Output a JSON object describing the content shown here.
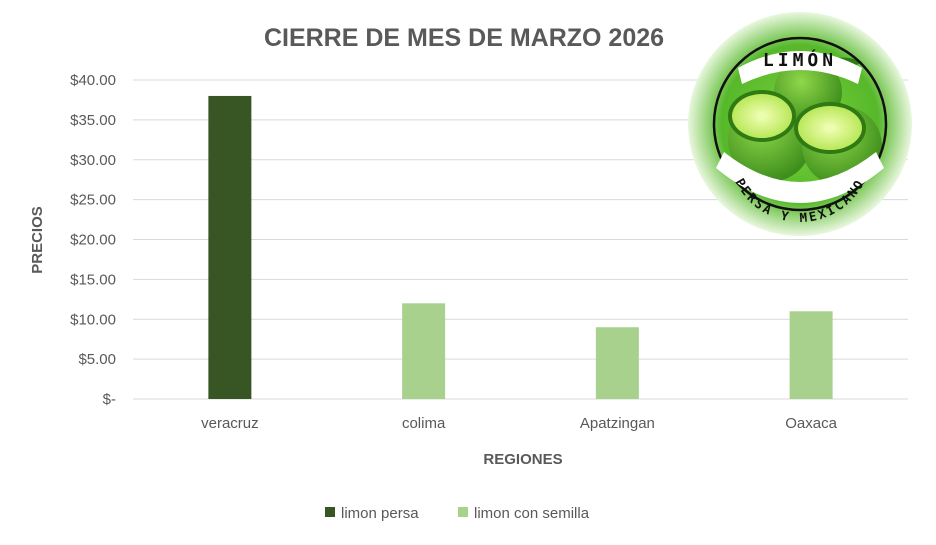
{
  "chart_data": {
    "type": "bar",
    "title": "CIERRE DE MES DE MARZO 2026",
    "xlabel": "REGIONES",
    "ylabel": "PRECIOS",
    "categories": [
      "veracruz",
      "colima",
      "Apatzingan",
      "Oaxaca"
    ],
    "series": [
      {
        "name": "limon persa",
        "color": "#375623",
        "values": [
          38,
          null,
          null,
          null
        ]
      },
      {
        "name": "limon con semilla",
        "color": "#a9d18e",
        "values": [
          null,
          12,
          9,
          11
        ]
      }
    ],
    "ylim": [
      0,
      40
    ],
    "yticks": [
      {
        "value": 40,
        "label": "$40.00"
      },
      {
        "value": 35,
        "label": "$35.00"
      },
      {
        "value": 30,
        "label": "$30.00"
      },
      {
        "value": 25,
        "label": "$25.00"
      },
      {
        "value": 20,
        "label": "$20.00"
      },
      {
        "value": 15,
        "label": "$15.00"
      },
      {
        "value": 10,
        "label": "$10.00"
      },
      {
        "value": 5,
        "label": "$5.00"
      },
      {
        "value": 0,
        "label": "$-"
      }
    ],
    "grid": true,
    "legend": "bottom",
    "gridline_color": "#d9d9d9"
  },
  "logo": {
    "top_text": "LIMÓN",
    "bottom_text": "PERSA Y MEXICANO",
    "icon": "lime-fruit-icon"
  }
}
